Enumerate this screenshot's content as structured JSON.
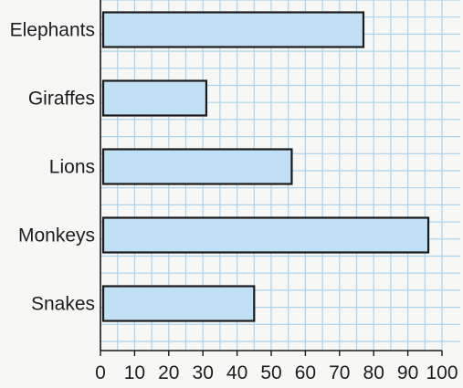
{
  "chart_data": {
    "type": "bar",
    "orientation": "horizontal",
    "categories": [
      "Elephants",
      "Giraffes",
      "Lions",
      "Monkeys",
      "Snakes"
    ],
    "values": [
      77,
      31,
      56,
      96,
      45
    ],
    "xlim": [
      0,
      100
    ],
    "x_ticks": [
      "0",
      "10",
      "20",
      "30",
      "40",
      "50",
      "60",
      "70",
      "80",
      "90",
      "100"
    ],
    "grid": true,
    "colors": {
      "bar_fill": "#bfe0f5",
      "bar_stroke": "#1a1a1a",
      "grid": "#a9d4ee"
    }
  }
}
